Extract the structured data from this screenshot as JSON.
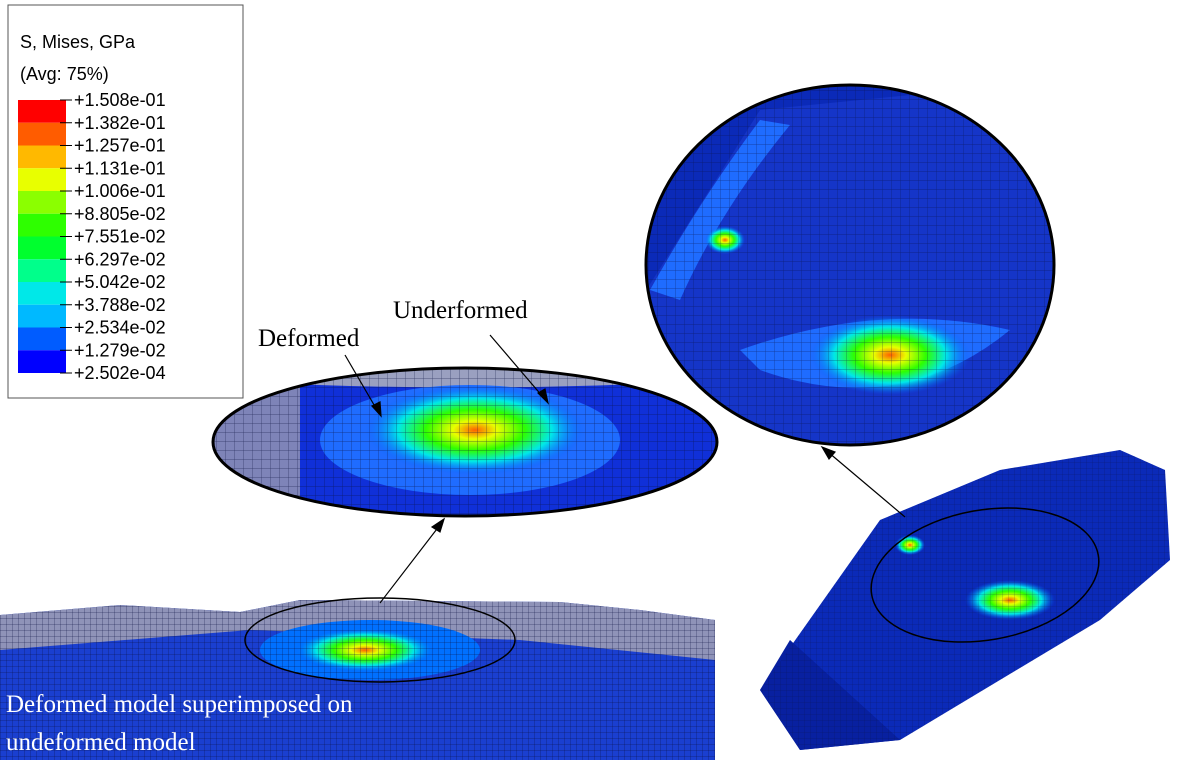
{
  "legend": {
    "title": "S, Mises, GPa",
    "subtitle": "(Avg: 75%)",
    "labels": [
      "+1.508e-01",
      "+1.382e-01",
      "+1.257e-01",
      "+1.131e-01",
      "+1.006e-01",
      "+8.805e-02",
      "+7.551e-02",
      "+6.297e-02",
      "+5.042e-02",
      "+3.788e-02",
      "+2.534e-02",
      "+1.279e-02",
      "+2.502e-04"
    ],
    "colors": [
      "#ff0000",
      "#ff5c00",
      "#ffb900",
      "#e8ff00",
      "#8bff00",
      "#2eff00",
      "#00ff2e",
      "#00ff8b",
      "#00e8e8",
      "#00b9ff",
      "#005cff",
      "#0000ff"
    ]
  },
  "annotations": {
    "deformed": "Deformed",
    "undeformed": "Underformed",
    "caption": [
      "Deformed model superimposed on",
      "undeformed model"
    ]
  }
}
